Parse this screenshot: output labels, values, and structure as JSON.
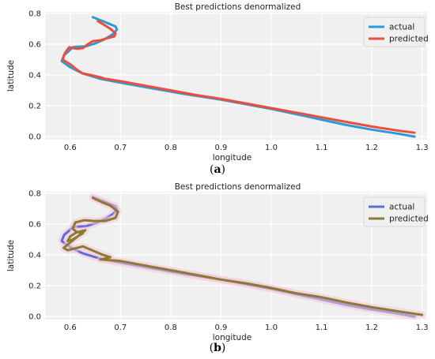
{
  "captions": [
    {
      "open": "(",
      "letter": "a",
      "close": ")"
    },
    {
      "open": "(",
      "letter": "b",
      "close": ")"
    }
  ],
  "chart_data": [
    {
      "type": "line",
      "title": "Best predictions denormalized",
      "xlabel": "longitude",
      "ylabel": "latitude",
      "xlim": [
        0.55,
        1.31
      ],
      "ylim": [
        -0.02,
        0.81
      ],
      "xticks": [
        "0.6",
        "0.7",
        "0.8",
        "0.9",
        "1.0",
        "1.1",
        "1.2",
        "1.3"
      ],
      "yticks": [
        "0.0",
        "0.2",
        "0.4",
        "0.6",
        "0.8"
      ],
      "grid": true,
      "legend_position": "top-right",
      "background": "#f0f0f0",
      "series": [
        {
          "name": "actual",
          "color": "#2b9bd6",
          "x": [
            0.645,
            0.672,
            0.69,
            0.693,
            0.685,
            0.67,
            0.65,
            0.63,
            0.613,
            0.605,
            0.597,
            0.588,
            0.583,
            0.6,
            0.625,
            0.66,
            0.7,
            0.76,
            0.83,
            0.9,
            0.95,
            1.0,
            1.05,
            1.1,
            1.15,
            1.2,
            1.25,
            1.285
          ],
          "y": [
            0.775,
            0.74,
            0.715,
            0.695,
            0.665,
            0.635,
            0.605,
            0.585,
            0.583,
            0.58,
            0.555,
            0.53,
            0.49,
            0.45,
            0.41,
            0.375,
            0.35,
            0.315,
            0.275,
            0.24,
            0.21,
            0.18,
            0.145,
            0.11,
            0.075,
            0.045,
            0.02,
            0.0
          ]
        },
        {
          "name": "predicted",
          "color": "#ec4d3c",
          "x": [
            0.655,
            0.68,
            0.69,
            0.688,
            0.675,
            0.66,
            0.645,
            0.635,
            0.625,
            0.615,
            0.605,
            0.598,
            0.59,
            0.585,
            0.6,
            0.615,
            0.625,
            0.64,
            0.66,
            0.67,
            0.7,
            0.75,
            0.8,
            0.85,
            0.9,
            0.95,
            1.0,
            1.05,
            1.1,
            1.15,
            1.2,
            1.25,
            1.285
          ],
          "y": [
            0.75,
            0.7,
            0.67,
            0.65,
            0.64,
            0.625,
            0.62,
            0.6,
            0.575,
            0.57,
            0.575,
            0.58,
            0.545,
            0.5,
            0.47,
            0.43,
            0.41,
            0.4,
            0.385,
            0.375,
            0.36,
            0.33,
            0.3,
            0.27,
            0.245,
            0.215,
            0.185,
            0.155,
            0.125,
            0.095,
            0.065,
            0.04,
            0.025
          ]
        }
      ]
    },
    {
      "type": "line",
      "title": "Best predictions denormalized",
      "xlabel": "longitude",
      "ylabel": "latitude",
      "xlim": [
        0.55,
        1.31
      ],
      "ylim": [
        -0.02,
        0.81
      ],
      "xticks": [
        "0.6",
        "0.7",
        "0.8",
        "0.9",
        "1.0",
        "1.1",
        "1.2",
        "1.3"
      ],
      "yticks": [
        "0.0",
        "0.2",
        "0.4",
        "0.6",
        "0.8"
      ],
      "grid": true,
      "legend_position": "top-right",
      "background": "#f0f0f0",
      "series": [
        {
          "name": "actual",
          "color": "#5a6fd6",
          "x": [
            0.645,
            0.672,
            0.69,
            0.693,
            0.685,
            0.67,
            0.65,
            0.63,
            0.613,
            0.605,
            0.597,
            0.588,
            0.583,
            0.6,
            0.625,
            0.66,
            0.7,
            0.76,
            0.83,
            0.9,
            0.95,
            1.0,
            1.05,
            1.1,
            1.15,
            1.2,
            1.25,
            1.285
          ],
          "y": [
            0.775,
            0.74,
            0.715,
            0.695,
            0.665,
            0.635,
            0.605,
            0.585,
            0.583,
            0.58,
            0.555,
            0.53,
            0.49,
            0.45,
            0.41,
            0.375,
            0.35,
            0.315,
            0.275,
            0.24,
            0.21,
            0.18,
            0.145,
            0.11,
            0.075,
            0.045,
            0.02,
            0.0
          ]
        },
        {
          "name": "predicted",
          "color": "#8b7a32",
          "x": [
            0.645,
            0.665,
            0.68,
            0.695,
            0.69,
            0.67,
            0.648,
            0.628,
            0.61,
            0.605,
            0.612,
            0.625,
            0.615,
            0.605,
            0.595,
            0.6,
            0.612,
            0.63,
            0.6,
            0.587,
            0.595,
            0.625,
            0.665,
            0.68,
            0.66,
            0.7,
            0.75,
            0.8,
            0.85,
            0.9,
            0.95,
            1.0,
            1.05,
            1.1,
            1.15,
            1.2,
            1.25,
            1.3
          ],
          "y": [
            0.77,
            0.74,
            0.72,
            0.68,
            0.64,
            0.62,
            0.62,
            0.625,
            0.61,
            0.57,
            0.55,
            0.54,
            0.52,
            0.5,
            0.49,
            0.52,
            0.545,
            0.56,
            0.48,
            0.445,
            0.43,
            0.455,
            0.4,
            0.385,
            0.37,
            0.36,
            0.33,
            0.3,
            0.27,
            0.24,
            0.215,
            0.185,
            0.15,
            0.125,
            0.09,
            0.06,
            0.035,
            0.01
          ]
        }
      ]
    }
  ]
}
